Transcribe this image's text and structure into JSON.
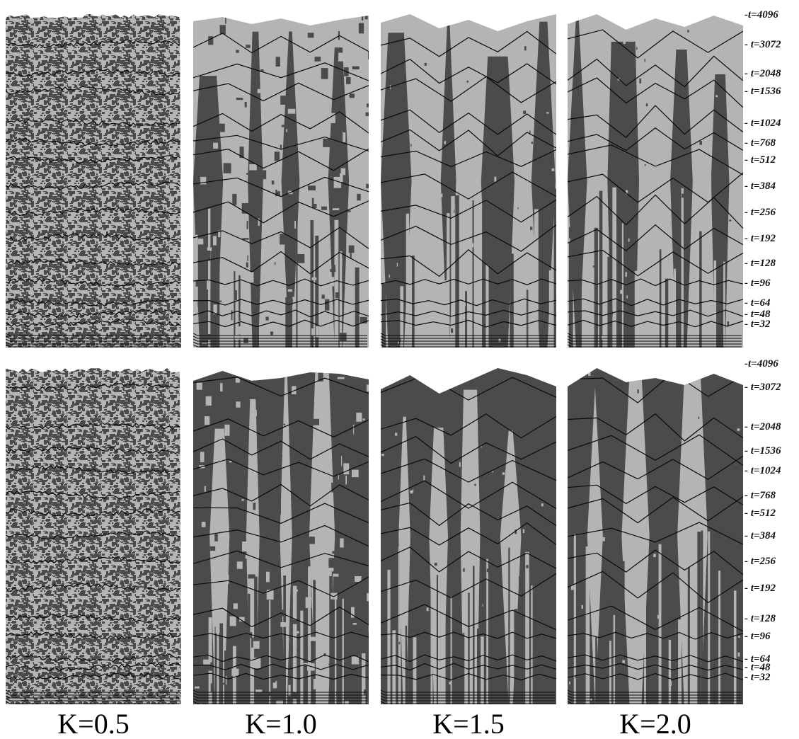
{
  "colors": {
    "light": "#b4b4b4",
    "dark": "#4b4b4b",
    "contour": "#0a0a0a",
    "background": "#ffffff"
  },
  "time_labels": [
    "t=4096",
    "t=3072",
    "t=2048",
    "t=1536",
    "t=1024",
    "t=768",
    "t=512",
    "t=384",
    "t=256",
    "t=192",
    "t=128",
    "t=96",
    "t=64",
    "t=48",
    "t=32"
  ],
  "column_labels": [
    "K=0.5",
    "K=1.0",
    "K=1.5",
    "K=2.0"
  ],
  "rows": [
    {
      "name": "top-row",
      "time_labels": [
        "t=4096",
        "t=3072",
        "t=2048",
        "t=1536",
        "t=1024",
        "t=768",
        "t=512",
        "t=384",
        "t=256",
        "t=192",
        "t=128",
        "t=96",
        "t=64",
        "t=48",
        "t=32"
      ]
    },
    {
      "name": "bottom-row",
      "time_labels": [
        "t=4096",
        "t=3072",
        "t=2048",
        "t=1536",
        "t=1024",
        "t=768",
        "t=512",
        "t=384",
        "t=256",
        "t=192",
        "t=128",
        "t=96",
        "t=64",
        "t=48",
        "t=32"
      ]
    }
  ]
}
